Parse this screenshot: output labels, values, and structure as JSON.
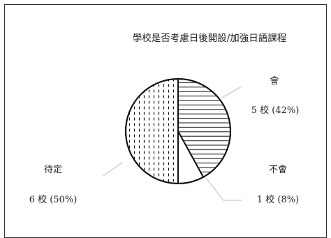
{
  "chart_data": {
    "type": "pie",
    "title": "學校是否考慮日後開設/加強日語課程",
    "slices": [
      {
        "name": "會",
        "value_label": "5 校 (42%)",
        "count": 5,
        "percent": 42,
        "pattern": "horizontal-lines"
      },
      {
        "name": "不會",
        "value_label": "1 校 (8%)",
        "count": 1,
        "percent": 8,
        "pattern": "none"
      },
      {
        "name": "待定",
        "value_label": "6 校 (50%)",
        "count": 6,
        "percent": 50,
        "pattern": "dashed-vertical"
      }
    ],
    "start_angle_deg": 0,
    "direction": "clockwise",
    "legend": "none",
    "colors": {
      "stroke": "#111111",
      "fill": "#ffffff",
      "border": "#333333"
    }
  }
}
